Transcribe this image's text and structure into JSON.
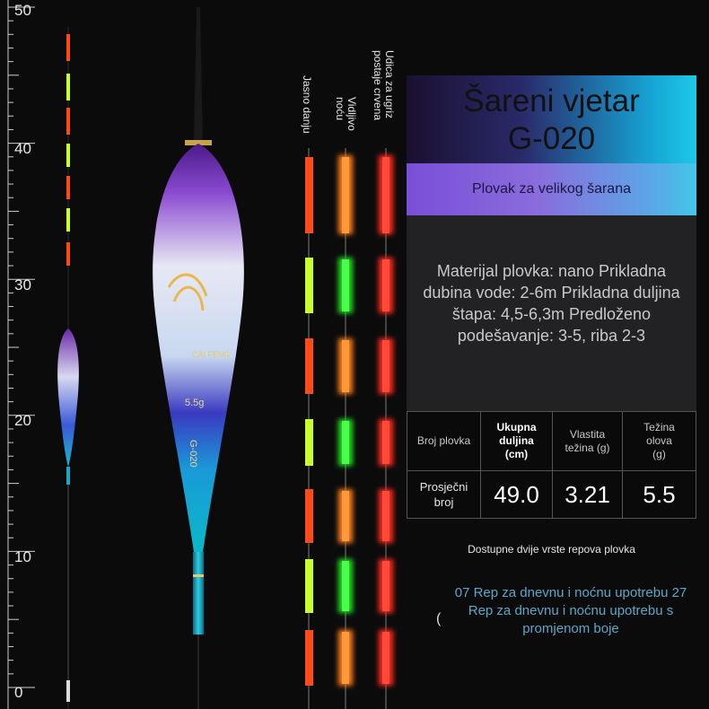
{
  "ruler": {
    "marks": [
      "50",
      "40",
      "30",
      "20",
      "10",
      "0"
    ]
  },
  "tail_labels": {
    "day": "Jasno danju",
    "night": "Vidljivo noću",
    "bite": "Udica za ugriz postaje crvena"
  },
  "product": {
    "title": "Šareni vjetar",
    "model": "G-020",
    "subtitle": "Plovak za velikog šarana",
    "specs": "Materijal plovka: nano Prikladna dubina vode: 2-6m Prikladna duljina štapa: 4,5-6,3m Predloženo podešavanje: 3-5, riba 2-3"
  },
  "table": {
    "headers": [
      "Broj plovka",
      "Ukupna duljina (cm)",
      "Vlastita težina (g)",
      "Težina olova (g)"
    ],
    "row_label": "Prosječni broj",
    "values": [
      "49.0",
      "3.21",
      "5.5"
    ]
  },
  "tails": {
    "note": "Dostupne dvije vrste repova plovka",
    "description": "07 Rep za dnevnu i noćnu upotrebu 27 Rep za dnevnu i noćnu upotrebu s promjenom boje",
    "paren": "("
  },
  "float_print": {
    "brand": "CAI FENG",
    "weight": "5.5g",
    "model": "G-020"
  },
  "colors": {
    "orange": "#ff4a1a",
    "lime": "#c8ff2a",
    "green": "#33dd33",
    "night_orange": "#ff8a1a",
    "red_glow": "#ff2a1a"
  }
}
